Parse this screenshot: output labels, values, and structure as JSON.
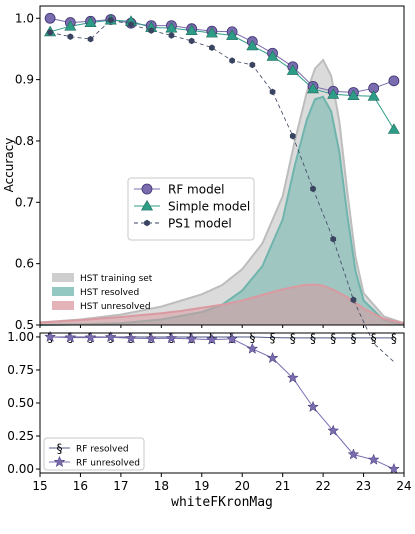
{
  "chart_data": [
    {
      "type": "line",
      "panel": "top",
      "ylabel": "Accuracy",
      "xlim": [
        15,
        24
      ],
      "ylim": [
        0.5,
        1.02
      ],
      "yticks": [
        "0.5",
        "0.6",
        "0.7",
        "0.8",
        "0.9",
        "1.0"
      ],
      "grid": false,
      "legend_upper": {
        "placement": "center-left",
        "entries": [
          "RF model",
          "Simple model",
          "PS1 model"
        ]
      },
      "legend_lower": {
        "placement": "lower-left",
        "entries": [
          "HST training set",
          "HST resolved",
          "HST unresolved"
        ]
      },
      "x": [
        15.25,
        15.75,
        16.25,
        16.75,
        17.25,
        17.75,
        18.25,
        18.75,
        19.25,
        19.75,
        20.25,
        20.75,
        21.25,
        21.75,
        22.25,
        22.75,
        23.25,
        23.75
      ],
      "series": [
        {
          "name": "RF model",
          "color": "#7b6cb0",
          "marker": "circle",
          "values": [
            1.0,
            0.993,
            0.995,
            0.998,
            0.992,
            0.988,
            0.988,
            0.983,
            0.979,
            0.978,
            0.962,
            0.943,
            0.921,
            0.889,
            0.881,
            0.879,
            0.886,
            0.898
          ]
        },
        {
          "name": "Simple model",
          "color": "#2e9d87",
          "marker": "triangle",
          "values": [
            0.978,
            0.987,
            0.993,
            0.997,
            0.995,
            0.985,
            0.984,
            0.98,
            0.976,
            0.972,
            0.955,
            0.938,
            0.915,
            0.885,
            0.876,
            0.874,
            0.873,
            0.819
          ]
        },
        {
          "name": "PS1 model",
          "color": "#3a4460",
          "marker": "hexagon",
          "dashed": true,
          "values": [
            0.977,
            0.97,
            0.966,
            0.997,
            0.99,
            0.98,
            0.972,
            0.963,
            0.952,
            0.931,
            0.924,
            0.88,
            0.808,
            0.722,
            0.64,
            0.541,
            0.47,
            0.44
          ]
        }
      ],
      "densities": [
        {
          "name": "HST training set",
          "color": "#bdbdbd",
          "x": [
            15.0,
            16.0,
            17.0,
            18.0,
            19.0,
            19.5,
            20.0,
            20.5,
            21.0,
            21.3,
            21.6,
            21.8,
            22.0,
            22.2,
            22.4,
            22.6,
            22.8,
            23.0,
            23.5,
            24.0
          ],
          "values": [
            0.504,
            0.509,
            0.517,
            0.53,
            0.55,
            0.565,
            0.591,
            0.633,
            0.71,
            0.8,
            0.88,
            0.918,
            0.932,
            0.906,
            0.832,
            0.716,
            0.611,
            0.552,
            0.514,
            0.503
          ]
        },
        {
          "name": "HST resolved",
          "color": "#6fb5ad",
          "x": [
            15.0,
            16.0,
            17.0,
            18.0,
            19.0,
            19.5,
            20.0,
            20.5,
            21.0,
            21.3,
            21.6,
            21.8,
            22.0,
            22.2,
            22.4,
            22.6,
            22.8,
            23.0,
            23.5,
            24.0
          ],
          "values": [
            0.5,
            0.501,
            0.503,
            0.509,
            0.521,
            0.533,
            0.556,
            0.596,
            0.672,
            0.76,
            0.835,
            0.868,
            0.872,
            0.848,
            0.782,
            0.678,
            0.588,
            0.54,
            0.508,
            0.501
          ]
        },
        {
          "name": "HST unresolved",
          "color": "#d99aa1",
          "x": [
            15.0,
            16.0,
            17.0,
            18.0,
            18.5,
            19.0,
            19.5,
            20.0,
            20.5,
            21.0,
            21.5,
            21.8,
            22.0,
            22.3,
            22.6,
            23.0,
            23.5,
            24.0
          ],
          "values": [
            0.504,
            0.508,
            0.513,
            0.519,
            0.523,
            0.528,
            0.533,
            0.54,
            0.549,
            0.558,
            0.565,
            0.566,
            0.564,
            0.556,
            0.545,
            0.527,
            0.51,
            0.503
          ]
        }
      ]
    },
    {
      "type": "line",
      "panel": "bottom",
      "xlabel": "whiteFKronMag",
      "xlim": [
        15,
        24
      ],
      "ylim": [
        -0.03,
        1.03
      ],
      "xticks": [
        "15",
        "16",
        "17",
        "18",
        "19",
        "20",
        "21",
        "22",
        "23",
        "24"
      ],
      "yticks": [
        "0.00",
        "0.25",
        "0.50",
        "0.75",
        "1.00"
      ],
      "grid": false,
      "legend": {
        "placement": "lower-left",
        "entries": [
          "RF resolved",
          "RF unresolved"
        ]
      },
      "x": [
        15.25,
        15.75,
        16.25,
        16.75,
        17.25,
        17.75,
        18.25,
        18.75,
        19.25,
        19.75,
        20.25,
        20.75,
        21.25,
        21.75,
        22.25,
        22.75,
        23.25,
        23.75
      ],
      "series": [
        {
          "name": "RF resolved",
          "color": "#4f5a85",
          "marker": "§",
          "values": [
            1.0,
            1.0,
            1.0,
            1.0,
            1.0,
            1.0,
            1.0,
            1.0,
            1.0,
            1.0,
            1.0,
            0.995,
            0.993,
            0.993,
            0.993,
            0.993,
            0.993,
            0.993
          ]
        },
        {
          "name": "RF unresolved",
          "color": "#7b6cb0",
          "marker": "star",
          "values": [
            1.0,
            0.995,
            0.995,
            0.998,
            0.99,
            0.988,
            0.99,
            0.985,
            0.98,
            0.985,
            0.91,
            0.84,
            0.69,
            0.47,
            0.29,
            0.11,
            0.07,
            0.0
          ]
        }
      ]
    }
  ]
}
